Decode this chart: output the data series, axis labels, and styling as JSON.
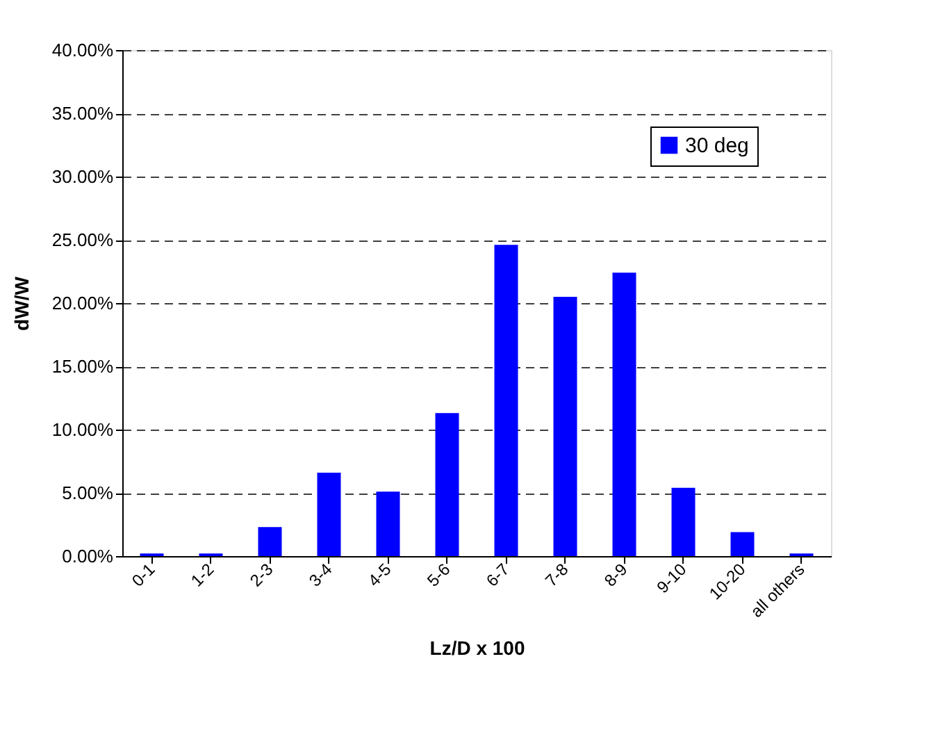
{
  "chart_data": {
    "type": "bar",
    "xlabel": "Lz/D x 100",
    "ylabel": "dW/W",
    "categories": [
      "0-1",
      "1-2",
      "2-3",
      "3-4",
      "4-5",
      "5-6",
      "6-7",
      "7-8",
      "8-9",
      "9-10",
      "10-20",
      "all others"
    ],
    "series": [
      {
        "name": "30 deg",
        "color": "#0000ff",
        "values": [
          0.2,
          0.2,
          2.3,
          6.6,
          5.1,
          11.3,
          24.6,
          20.5,
          22.4,
          5.4,
          1.9,
          0.2
        ]
      }
    ],
    "ylim": [
      0,
      40
    ],
    "yticks": [
      {
        "value": 0,
        "label": "0.00%"
      },
      {
        "value": 5,
        "label": "5.00%"
      },
      {
        "value": 10,
        "label": "10.00%"
      },
      {
        "value": 15,
        "label": "15.00%"
      },
      {
        "value": 20,
        "label": "20.00%"
      },
      {
        "value": 25,
        "label": "25.00%"
      },
      {
        "value": 30,
        "label": "30.00%"
      },
      {
        "value": 35,
        "label": "35.00%"
      },
      {
        "value": 40,
        "label": "40.00%"
      }
    ],
    "grid": "y",
    "legend": "top right"
  }
}
